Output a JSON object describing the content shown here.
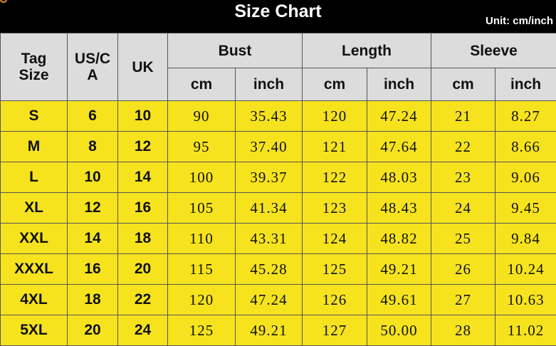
{
  "header": {
    "title": "Size Chart",
    "unit": "Unit: cm/inch"
  },
  "columns": {
    "tag": "Tag Size",
    "us": "US/CA",
    "uk": "UK",
    "bust": "Bust",
    "length": "Length",
    "sleeve": "Sleeve",
    "cm": "cm",
    "inch": "inch"
  },
  "colors": {
    "header_bg": "#000000",
    "column_header_bg": "#dcdcdc",
    "row_bg": "#f6e31e"
  },
  "rows": [
    [
      "S",
      "6",
      "10",
      "90",
      "35.43",
      "120",
      "47.24",
      "21",
      "8.27"
    ],
    [
      "M",
      "8",
      "12",
      "95",
      "37.40",
      "121",
      "47.64",
      "22",
      "8.66"
    ],
    [
      "L",
      "10",
      "14",
      "100",
      "39.37",
      "122",
      "48.03",
      "23",
      "9.06"
    ],
    [
      "XL",
      "12",
      "16",
      "105",
      "41.34",
      "123",
      "48.43",
      "24",
      "9.45"
    ],
    [
      "XXL",
      "14",
      "18",
      "110",
      "43.31",
      "124",
      "48.82",
      "25",
      "9.84"
    ],
    [
      "XXXL",
      "16",
      "20",
      "115",
      "45.28",
      "125",
      "49.21",
      "26",
      "10.24"
    ],
    [
      "4XL",
      "18",
      "22",
      "120",
      "47.24",
      "126",
      "49.61",
      "27",
      "10.63"
    ],
    [
      "5XL",
      "20",
      "24",
      "125",
      "49.21",
      "127",
      "50.00",
      "28",
      "11.02"
    ]
  ]
}
